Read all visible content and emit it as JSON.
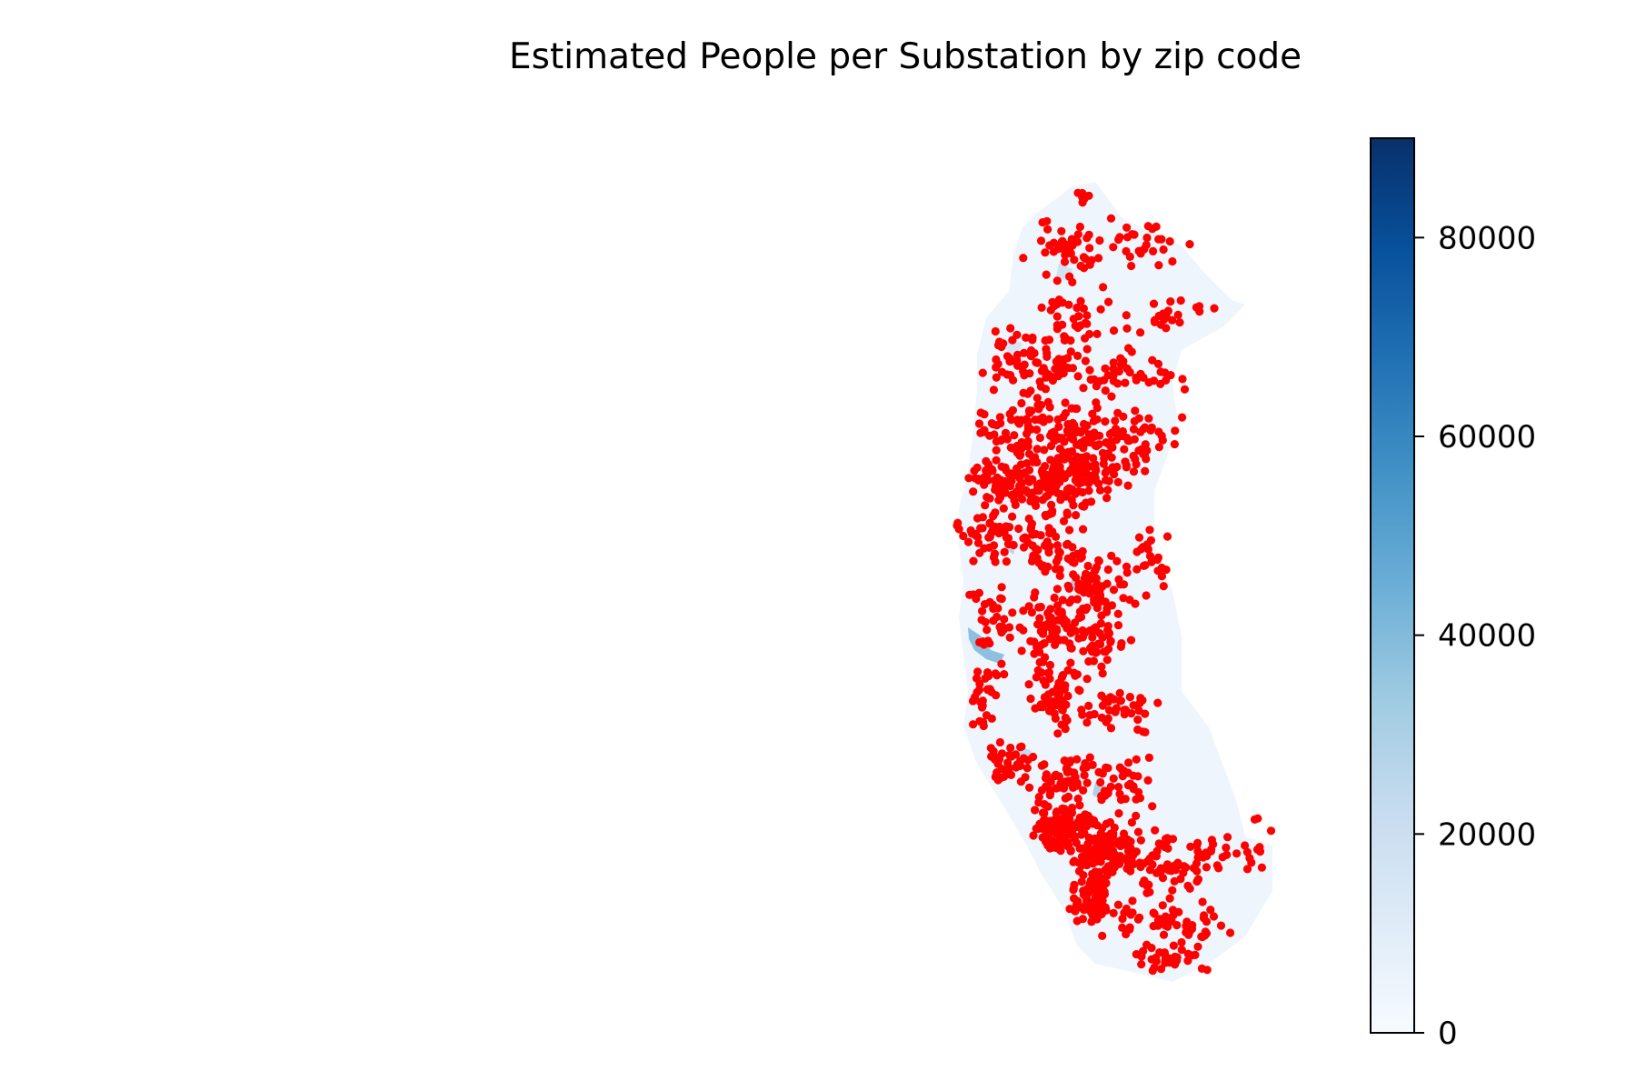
{
  "title": "Estimated People per Substation by zip code",
  "colorbar": {
    "colormap": "Blues",
    "min": 0,
    "max": 90000,
    "ticks": [
      {
        "value": 0,
        "label": "0"
      },
      {
        "value": 20000,
        "label": "20000"
      },
      {
        "value": 40000,
        "label": "40000"
      },
      {
        "value": 60000,
        "label": "60000"
      },
      {
        "value": 80000,
        "label": "80000"
      }
    ],
    "stops": [
      "#f7fbff",
      "#deebf7",
      "#c6dbef",
      "#9ecae1",
      "#6baed6",
      "#4292c6",
      "#2171b5",
      "#08519c",
      "#08306b"
    ]
  },
  "markers": {
    "color": "#ff0000",
    "meaning": "substation locations"
  },
  "region_fill_color": "#eef5fc"
}
